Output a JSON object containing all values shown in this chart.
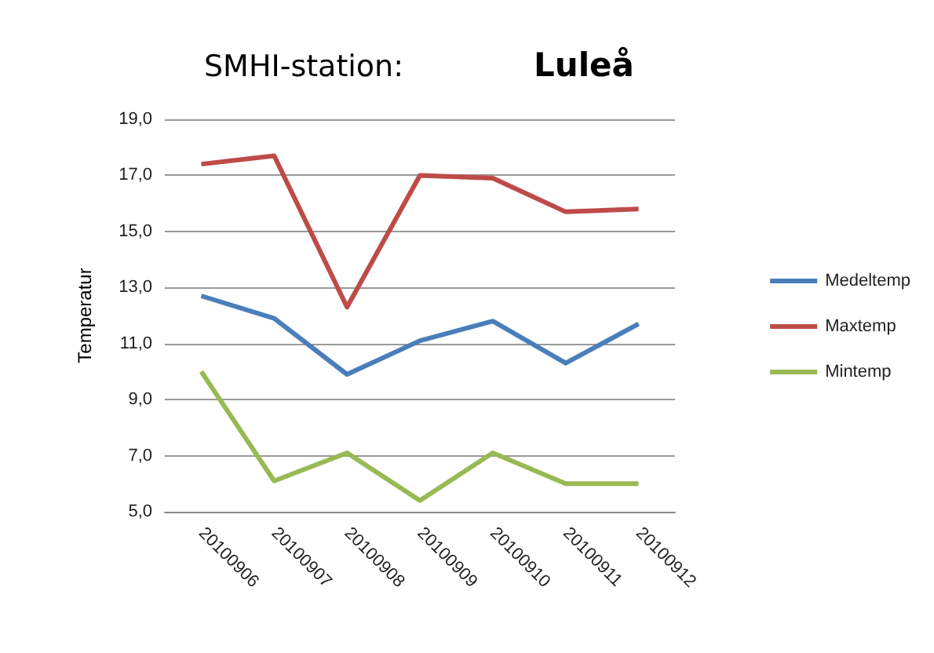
{
  "chart_data": {
    "type": "line",
    "title": "SMHI-station:",
    "subtitle": "Luleå",
    "ylabel": "Temperatur",
    "categories": [
      "20100906",
      "20100907",
      "20100908",
      "20100909",
      "20100910",
      "20100911",
      "20100912"
    ],
    "series": [
      {
        "name": "Medeltemp",
        "color": "#4a7ebb",
        "values": [
          12.7,
          11.9,
          9.9,
          11.1,
          11.8,
          10.3,
          11.7
        ]
      },
      {
        "name": "Maxtemp",
        "color": "#be4b48",
        "values": [
          17.4,
          17.7,
          12.3,
          17.0,
          16.9,
          15.7,
          15.8
        ]
      },
      {
        "name": "Mintemp",
        "color": "#98b954",
        "values": [
          10.0,
          6.1,
          7.1,
          5.4,
          7.1,
          6.0,
          6.0
        ]
      }
    ],
    "ylim": [
      5,
      19
    ],
    "yticks": [
      {
        "value": 5,
        "label": "5,0"
      },
      {
        "value": 7,
        "label": "7,0"
      },
      {
        "value": 9,
        "label": "9,0"
      },
      {
        "value": 11,
        "label": "11,0"
      },
      {
        "value": 13,
        "label": "13,0"
      },
      {
        "value": 15,
        "label": "15,0"
      },
      {
        "value": 17,
        "label": "17,0"
      },
      {
        "value": 19,
        "label": "19,0"
      }
    ],
    "grid": "y",
    "legend": "right",
    "marker": "none",
    "line_style": "solid"
  }
}
